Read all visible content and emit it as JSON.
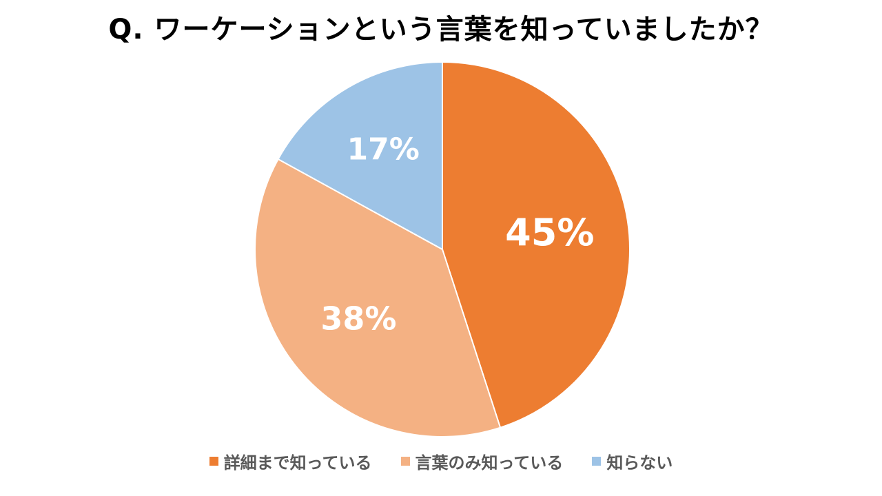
{
  "chart_data": {
    "type": "pie",
    "title": "Q. ワーケーションという言葉を知っていましたか？",
    "categories": [
      "詳細まで知っている",
      "言葉のみ知っている",
      "知らない"
    ],
    "values": [
      45,
      38,
      17
    ],
    "labels": [
      "45%",
      "38%",
      "17%"
    ],
    "colors": [
      "#ED7D31",
      "#F4B183",
      "#9DC3E6"
    ],
    "legend_position": "bottom"
  }
}
